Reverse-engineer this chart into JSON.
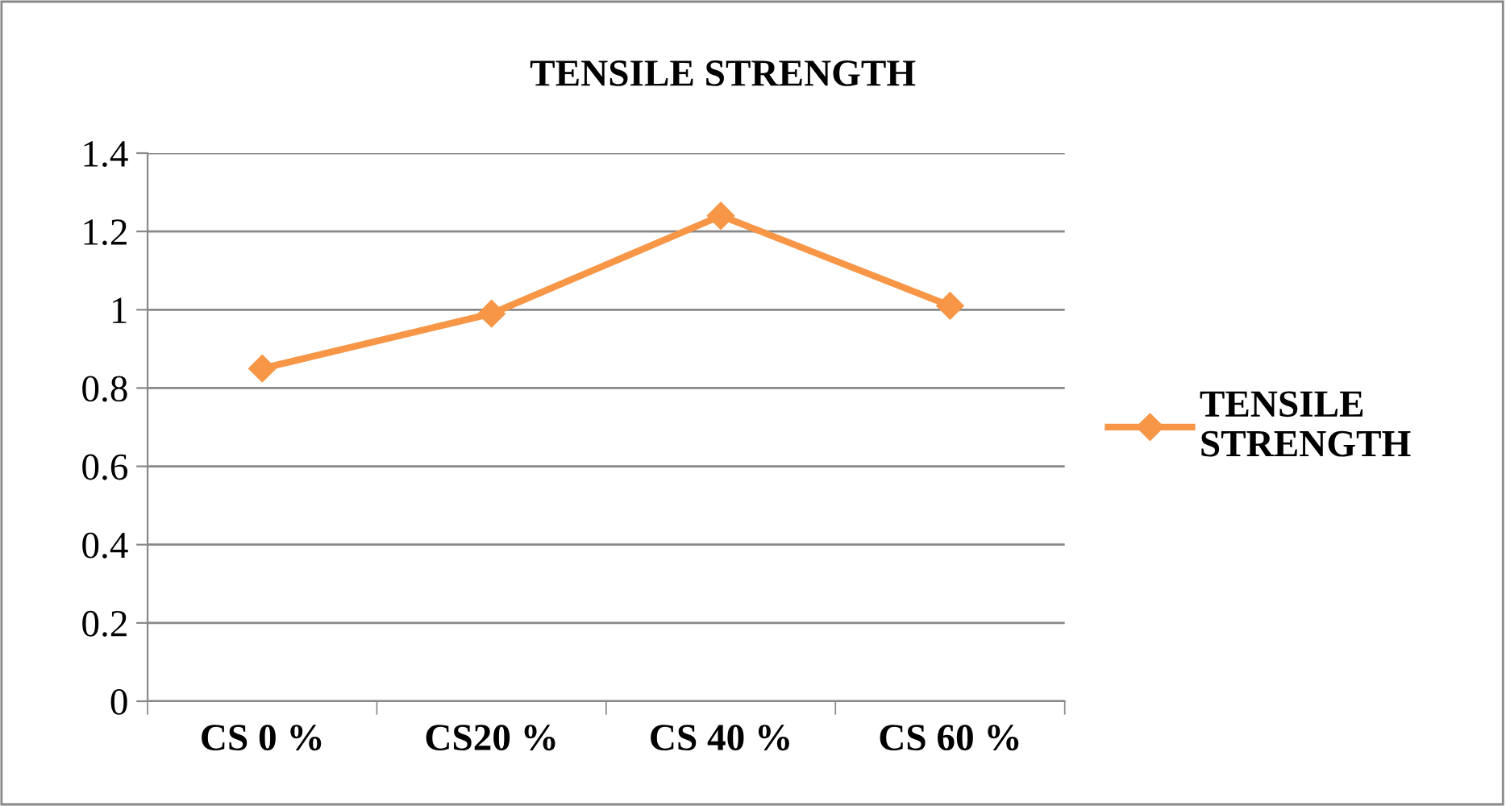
{
  "chart_data": {
    "type": "line",
    "title": "TENSILE STRENGTH",
    "categories": [
      "CS 0 %",
      "CS20 %",
      "CS 40 %",
      "CS 60 %"
    ],
    "series": [
      {
        "name": "TENSILE STRENGTH",
        "color": "#f79646",
        "values": [
          0.85,
          0.99,
          1.24,
          1.01
        ]
      }
    ],
    "ylim": [
      0,
      1.4
    ],
    "yticks": [
      0,
      0.2,
      0.4,
      0.6,
      0.8,
      1,
      1.2,
      1.4
    ],
    "grid": "y",
    "legend": "right",
    "marker": "diamond",
    "line_style": "solid"
  }
}
